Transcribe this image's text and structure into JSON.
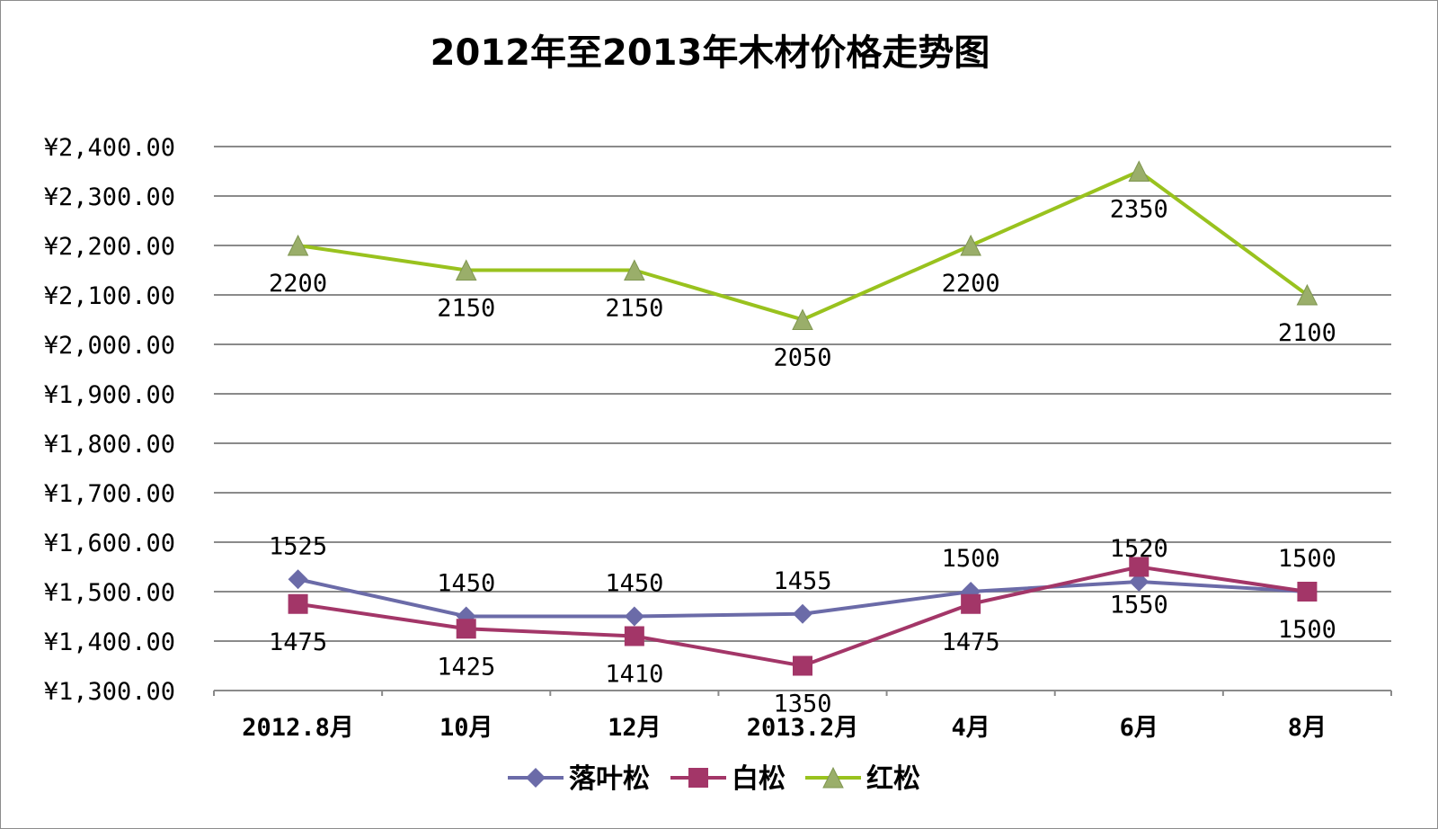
{
  "chart_data": {
    "type": "line",
    "title": "2012年至2013年木材价格走势图",
    "categories": [
      "2012.8月",
      "10月",
      "12月",
      "2013.2月",
      "4月",
      "6月",
      "8月"
    ],
    "ylim": [
      1300,
      2400
    ],
    "yticks": [
      "¥2,400.00",
      "¥2,300.00",
      "¥2,200.00",
      "¥2,100.00",
      "¥2,000.00",
      "¥1,900.00",
      "¥1,800.00",
      "¥1,700.00",
      "¥1,600.00",
      "¥1,500.00",
      "¥1,400.00",
      "¥1,300.00"
    ],
    "grid": true,
    "legend_position": "bottom",
    "series": [
      {
        "name": "落叶松",
        "color": "#6b6ba8",
        "marker": "diamond",
        "values": [
          1525,
          1450,
          1450,
          1455,
          1500,
          1520,
          1500
        ],
        "label_pos": [
          "above",
          "above",
          "above",
          "above",
          "above",
          "above",
          "above"
        ]
      },
      {
        "name": "白松",
        "color": "#a33668",
        "marker": "square",
        "values": [
          1475,
          1425,
          1410,
          1350,
          1475,
          1550,
          1500
        ],
        "label_pos": [
          "below",
          "below",
          "below",
          "below",
          "below",
          "below",
          "below"
        ]
      },
      {
        "name": "红松",
        "color": "#99c21e",
        "marker": "triangle",
        "values": [
          2200,
          2150,
          2150,
          2050,
          2200,
          2350,
          2100
        ],
        "label_pos": [
          "below",
          "below",
          "below",
          "below",
          "below",
          "below",
          "below"
        ]
      }
    ]
  }
}
